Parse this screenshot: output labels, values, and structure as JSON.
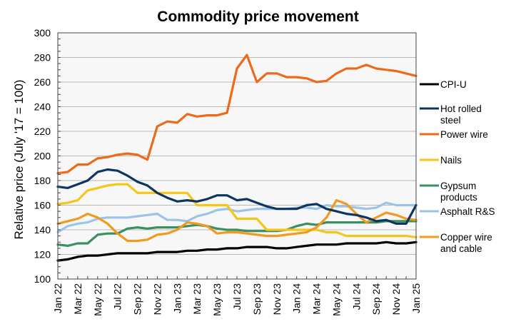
{
  "chart_data": {
    "type": "line",
    "title": "Commodity price movement",
    "xlabel": "",
    "ylabel": "Relative price (July '17 = 100)",
    "ylim": [
      100,
      300
    ],
    "yticks": [
      100,
      120,
      140,
      160,
      180,
      200,
      220,
      240,
      260,
      280,
      300
    ],
    "grid": true,
    "legend_position": "right",
    "x": [
      "Jan 22",
      "Feb 22",
      "Mar 22",
      "Apr 22",
      "May 22",
      "Jun 22",
      "Jul 22",
      "Aug 22",
      "Sep 22",
      "Oct 22",
      "Nov 22",
      "Dec 22",
      "Jan 23",
      "Feb 23",
      "Mar 23",
      "Apr 23",
      "May 23",
      "Jun 23",
      "Jul 23",
      "Aug 23",
      "Sep 23",
      "Oct 23",
      "Nov 23",
      "Dec 23",
      "Jan 24",
      "Feb 24",
      "Mar 24",
      "Apr 24",
      "May 24",
      "Jun 24",
      "Jul 24",
      "Aug 24",
      "Sep 24",
      "Oct 24",
      "Nov 24",
      "Dec 24",
      "Jan 25"
    ],
    "xtick_labels": [
      "Jan 22",
      "Mar 22",
      "May 22",
      "Jul 22",
      "Sep 22",
      "Nov 22",
      "Jan 23",
      "Mar 23",
      "May 23",
      "Jul 23",
      "Sep 23",
      "Nov 23",
      "Jan 24",
      "Mar 24",
      "May 24",
      "Jul 24",
      "Sep 24",
      "Nov 24",
      "Jan 25"
    ],
    "series": [
      {
        "name": "Asphalt R&S",
        "legend_label": [
          "Asphalt R&S"
        ],
        "color": "#9dc3e6",
        "values": [
          138,
          143,
          145,
          146,
          149,
          150,
          150,
          150,
          151,
          152,
          153,
          148,
          148,
          147,
          151,
          153,
          156,
          157,
          155,
          156,
          157,
          157,
          157,
          157,
          158,
          158,
          157,
          160,
          159,
          159,
          158,
          157,
          158,
          162,
          160,
          160,
          160
        ]
      },
      {
        "name": "Gypsum products",
        "legend_label": [
          "Gypsum",
          "products"
        ],
        "color": "#3a9060",
        "values": [
          128,
          127,
          129,
          129,
          136,
          137,
          137,
          141,
          142,
          141,
          142,
          142,
          142,
          143,
          144,
          143,
          141,
          140,
          140,
          139,
          139,
          139,
          139,
          140,
          143,
          145,
          144,
          146,
          146,
          146,
          146,
          146,
          146,
          147,
          147,
          147,
          147
        ]
      },
      {
        "name": "Nails",
        "legend_label": [
          "Nails"
        ],
        "color": "#f5c518",
        "values": [
          161,
          162,
          164,
          172,
          174,
          176,
          177,
          177,
          170,
          170,
          170,
          170,
          170,
          170,
          160,
          160,
          160,
          160,
          149,
          149,
          149,
          140,
          140,
          140,
          140,
          140,
          140,
          138,
          138,
          135,
          135,
          135,
          135,
          135,
          135,
          135,
          134
        ]
      },
      {
        "name": "Copper wire and cable",
        "legend_label": [
          "Copper wire",
          "and cable"
        ],
        "color": "#f29a1f",
        "values": [
          145,
          147,
          149,
          153,
          150,
          145,
          137,
          131,
          131,
          132,
          136,
          137,
          140,
          146,
          145,
          143,
          137,
          138,
          138,
          137,
          136,
          135,
          135,
          136,
          137,
          138,
          142,
          150,
          164,
          161,
          153,
          146,
          150,
          154,
          152,
          149,
          148
        ]
      },
      {
        "name": "Hot rolled steel",
        "legend_label": [
          "Hot rolled",
          "steel"
        ],
        "color": "#0d3560",
        "values": [
          175,
          174,
          177,
          180,
          187,
          189,
          188,
          184,
          179,
          176,
          170,
          166,
          163,
          164,
          163,
          165,
          168,
          168,
          164,
          165,
          162,
          159,
          157,
          157,
          157,
          160,
          161,
          157,
          155,
          153,
          152,
          150,
          147,
          148,
          145,
          145,
          160
        ]
      },
      {
        "name": "Power wire",
        "legend_label": [
          "Power wire"
        ],
        "color": "#ee6a1b",
        "values": [
          186,
          187,
          193,
          193,
          198,
          199,
          201,
          202,
          201,
          197,
          224,
          228,
          227,
          234,
          232,
          233,
          233,
          235,
          271,
          282,
          260,
          267,
          267,
          264,
          264,
          263,
          260,
          261,
          267,
          271,
          271,
          274,
          271,
          270,
          269,
          267,
          265
        ]
      },
      {
        "name": "CPI-U",
        "legend_label": [
          "CPI-U"
        ],
        "color": "#000000",
        "values": [
          115,
          116,
          118,
          119,
          119,
          120,
          121,
          121,
          121,
          121,
          122,
          122,
          122,
          123,
          123,
          124,
          124,
          125,
          125,
          126,
          126,
          126,
          125,
          125,
          126,
          127,
          128,
          128,
          128,
          129,
          129,
          129,
          129,
          130,
          129,
          129,
          130
        ]
      }
    ],
    "legend_order": [
      "CPI-U",
      "Hot rolled steel",
      "Power wire",
      "Nails",
      "Gypsum products",
      "Asphalt R&S",
      "Copper wire and cable"
    ]
  }
}
